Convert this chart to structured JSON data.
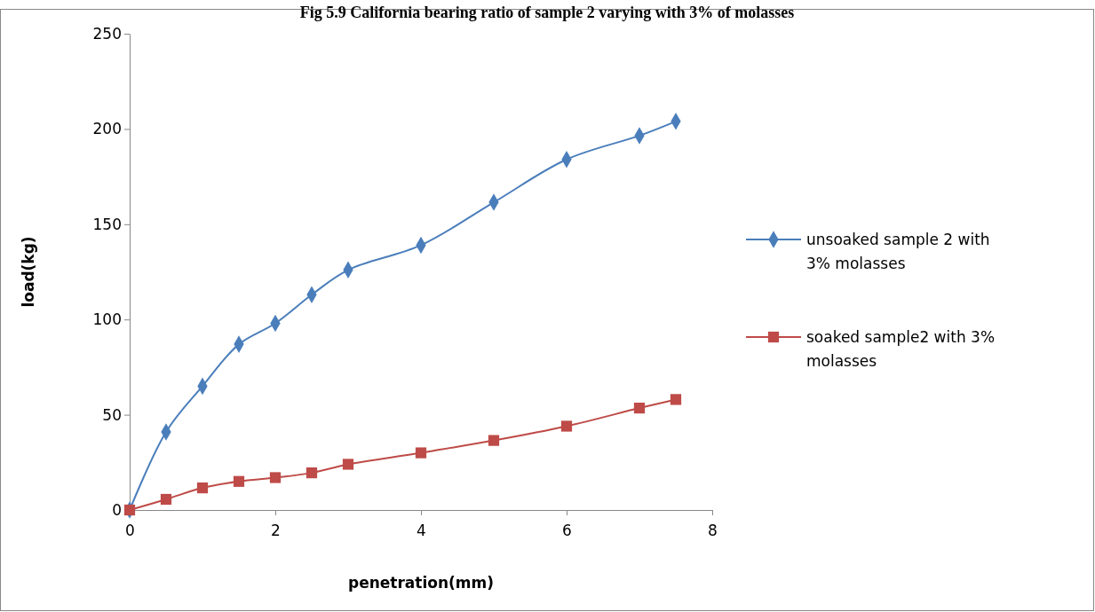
{
  "chart_data": {
    "type": "line",
    "title": "Fig 5.9 California bearing ratio of sample 2 varying with 3% of molasses",
    "xlabel": "penetration(mm)",
    "ylabel": "load(kg)",
    "xlim": [
      0,
      8
    ],
    "xticks": [
      0,
      2,
      4,
      6,
      8
    ],
    "ylim": [
      0,
      250
    ],
    "yticks": [
      0,
      50,
      100,
      150,
      200,
      250
    ],
    "legend": "right",
    "grid": false,
    "series": [
      {
        "name": "unsoaked sample 2 with 3% molasses",
        "color": "#4a7ebb",
        "marker": "diamond",
        "x": [
          0,
          0.5,
          1,
          1.5,
          2,
          2.5,
          3,
          4,
          5,
          6,
          7,
          7.5
        ],
        "values": [
          0,
          41,
          65,
          87,
          98,
          113,
          126,
          139,
          161.5,
          184,
          196.5,
          204
        ]
      },
      {
        "name": "soaked sample2 with 3% molasses",
        "color": "#be4b48",
        "marker": "square",
        "x": [
          0,
          0.5,
          1,
          1.5,
          2,
          2.5,
          3,
          4,
          5,
          6,
          7,
          7.5
        ],
        "values": [
          0,
          5.6,
          11.6,
          15,
          17,
          19.5,
          24,
          30,
          36.5,
          44,
          53.5,
          58
        ]
      }
    ]
  }
}
